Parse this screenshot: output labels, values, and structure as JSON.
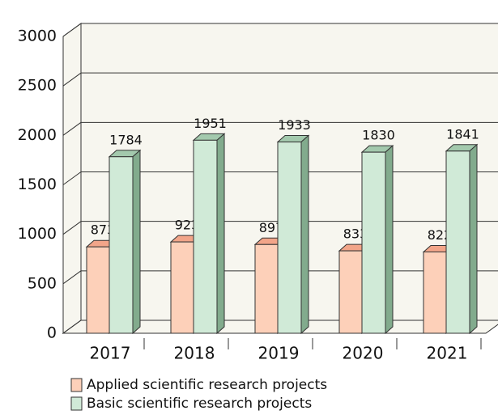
{
  "chart_data": {
    "type": "bar",
    "categories": [
      "2017",
      "2018",
      "2019",
      "2020",
      "2021"
    ],
    "series": [
      {
        "name": "Applied scientific research projects",
        "color": "#fdd0b9",
        "values": [
          873,
          923,
          897,
          833,
          822
        ]
      },
      {
        "name": "Basic scientific research projects",
        "color": "#d0ead7",
        "values": [
          1784,
          1951,
          1933,
          1830,
          1841
        ]
      }
    ],
    "ylim": [
      0,
      3000
    ],
    "yticks": [
      0,
      500,
      1000,
      1500,
      2000,
      2500,
      3000
    ],
    "grid": true,
    "legend": "bottom"
  }
}
